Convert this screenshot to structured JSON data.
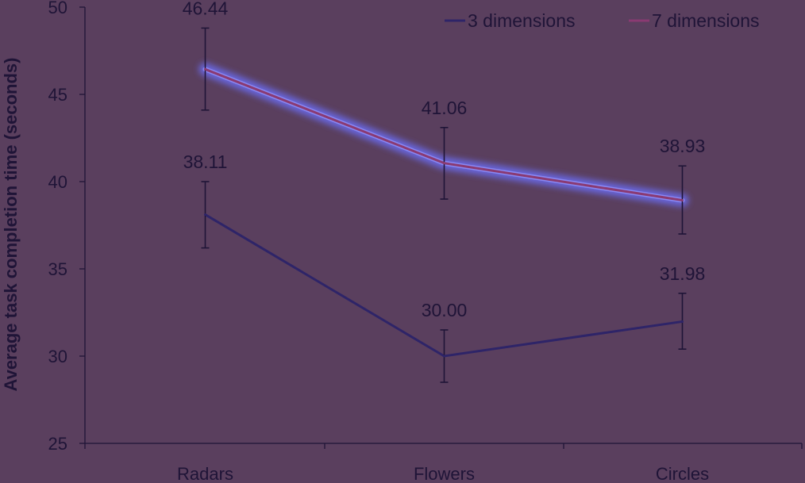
{
  "chart_data": {
    "type": "line",
    "title": "",
    "xlabel": "",
    "ylabel": "Average task completion time (seconds)",
    "ylim": [
      25,
      50
    ],
    "yticks": [
      "25",
      "30",
      "35",
      "40",
      "45",
      "50"
    ],
    "categories": [
      "Radars",
      "Flowers",
      "Circles"
    ],
    "legend_position": "top-right",
    "grid": false,
    "series": [
      {
        "name": "3 dimensions",
        "color": "#2e2468",
        "values": [
          38.11,
          30.0,
          31.98
        ],
        "labels": [
          "38.11",
          "30.00",
          "31.98"
        ],
        "error_low": [
          36.2,
          28.5,
          30.4
        ],
        "error_high": [
          40.0,
          31.5,
          33.6
        ],
        "highlight": false
      },
      {
        "name": "7 dimensions",
        "color": "#8a3a72",
        "values": [
          46.44,
          41.06,
          38.93
        ],
        "labels": [
          "46.44",
          "41.06",
          "38.93"
        ],
        "error_low": [
          44.1,
          39.0,
          37.0
        ],
        "error_high": [
          48.8,
          43.1,
          40.9
        ],
        "highlight": true,
        "highlight_color": "#6a6cf0"
      }
    ],
    "axis_color": "#1f1437"
  }
}
